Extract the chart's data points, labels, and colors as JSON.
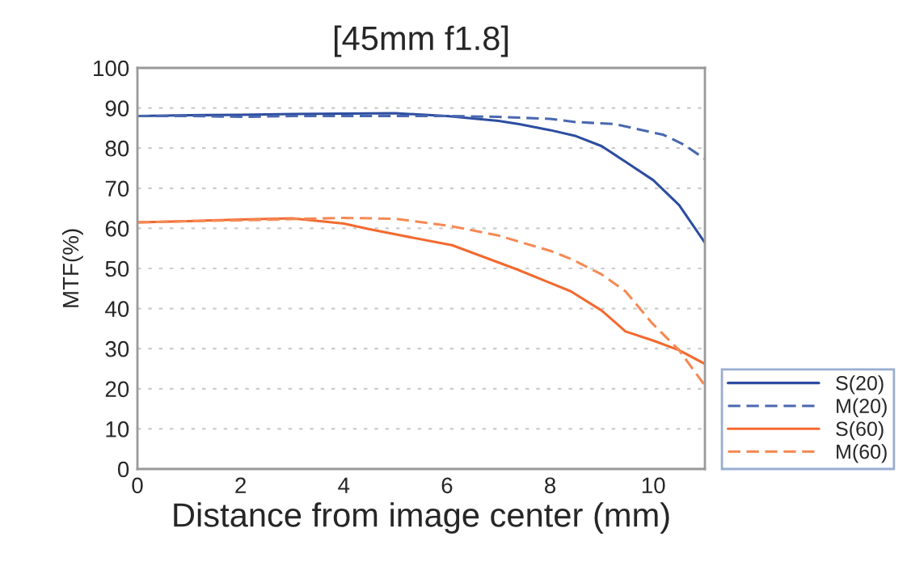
{
  "chart_data": {
    "type": "line",
    "title": "[45mm f1.8]",
    "xlabel": "Distance from image center (mm)",
    "ylabel": "MTF(%)",
    "xlim": [
      0,
      11
    ],
    "xticks": [
      0,
      2,
      4,
      6,
      8,
      10
    ],
    "ylim": [
      0,
      100
    ],
    "yticks": [
      0,
      10,
      20,
      30,
      40,
      50,
      60,
      70,
      80,
      90,
      100
    ],
    "grid": "y",
    "legend": "bottom right",
    "marker": "none",
    "series": [
      {
        "name": "S(20)",
        "color": "#2d4da0",
        "line_style": "solid",
        "x": [
          0,
          1,
          2,
          3,
          4,
          5,
          6,
          7,
          7.4,
          8,
          8.5,
          9,
          9.46,
          10,
          10.5,
          11
        ],
        "values": [
          88,
          88.2,
          88.3,
          88.5,
          88.6,
          88.7,
          88,
          86.8,
          86,
          84.5,
          83,
          80.5,
          76.6,
          72,
          65.8,
          56.4
        ]
      },
      {
        "name": "M(20)",
        "color": "#4a68b0",
        "line_style": "dashed",
        "x": [
          0,
          1,
          2,
          3,
          4,
          5,
          6,
          7,
          8,
          8.5,
          9.25,
          10.2,
          10.6,
          11
        ],
        "values": [
          88,
          88,
          87.8,
          88,
          88,
          88,
          88,
          87.8,
          87.3,
          86.5,
          86,
          83.3,
          80.8,
          77.3
        ]
      },
      {
        "name": "S(60)",
        "color": "#f26a30",
        "line_style": "solid",
        "x": [
          0,
          1,
          2,
          3,
          4,
          4.5,
          5,
          6.1,
          7.37,
          8,
          8.4,
          9,
          9.46,
          10,
          10.5,
          11
        ],
        "values": [
          61.5,
          61.8,
          62.2,
          62.5,
          61.2,
          59.8,
          58.5,
          55.8,
          49.7,
          46.4,
          44.3,
          39.5,
          34.3,
          32,
          29.6,
          26.2
        ]
      },
      {
        "name": "M(60)",
        "color": "#f58a55",
        "line_style": "dashed",
        "x": [
          0,
          1,
          2,
          3,
          4,
          5,
          6.1,
          7,
          8,
          8.4,
          9,
          9.46,
          9.98,
          10.5,
          11
        ],
        "values": [
          61.5,
          61.8,
          62,
          62.3,
          62.6,
          62.4,
          60.5,
          58.2,
          54.4,
          52.4,
          48.5,
          44.3,
          36.3,
          29.6,
          20.8
        ]
      }
    ]
  }
}
